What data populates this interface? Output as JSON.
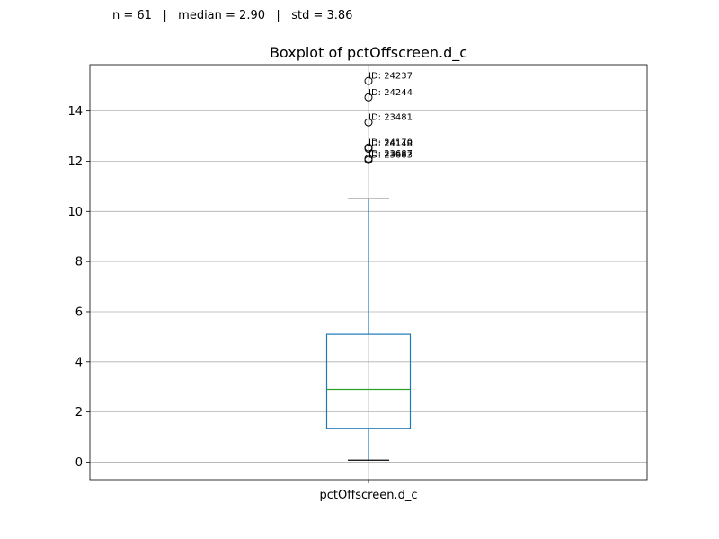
{
  "stats": {
    "n_label": "n = 61",
    "median_label": "median = 2.90",
    "std_label": "std = 3.86",
    "separator": "|"
  },
  "chart_data": {
    "type": "box",
    "title": "Boxplot of pctOffscreen.d_c",
    "xlabel": "",
    "ylabel": "",
    "categories": [
      "pctOffscreen.d_c"
    ],
    "ylim": [
      -0.7,
      15.85
    ],
    "yticks": [
      0,
      2,
      4,
      6,
      8,
      10,
      12,
      14
    ],
    "grid": true,
    "box": {
      "whisker_low": 0.08,
      "q1": 1.35,
      "median": 2.9,
      "q3": 5.1,
      "whisker_high": 10.5
    },
    "outliers": [
      {
        "value": 15.2,
        "label": "ID: 24237"
      },
      {
        "value": 14.55,
        "label": "ID: 24244"
      },
      {
        "value": 13.55,
        "label": "ID: 23481"
      },
      {
        "value": 12.55,
        "label": "ID: 24170"
      },
      {
        "value": 12.5,
        "label": "ID: 24148"
      },
      {
        "value": 12.1,
        "label": "ID: 23687"
      },
      {
        "value": 12.05,
        "label": "ID: 23683"
      }
    ],
    "colors": {
      "box": "#1f77b4",
      "median": "#2ca02c",
      "caps": "#000000",
      "grid": "#b0b0b0"
    }
  }
}
